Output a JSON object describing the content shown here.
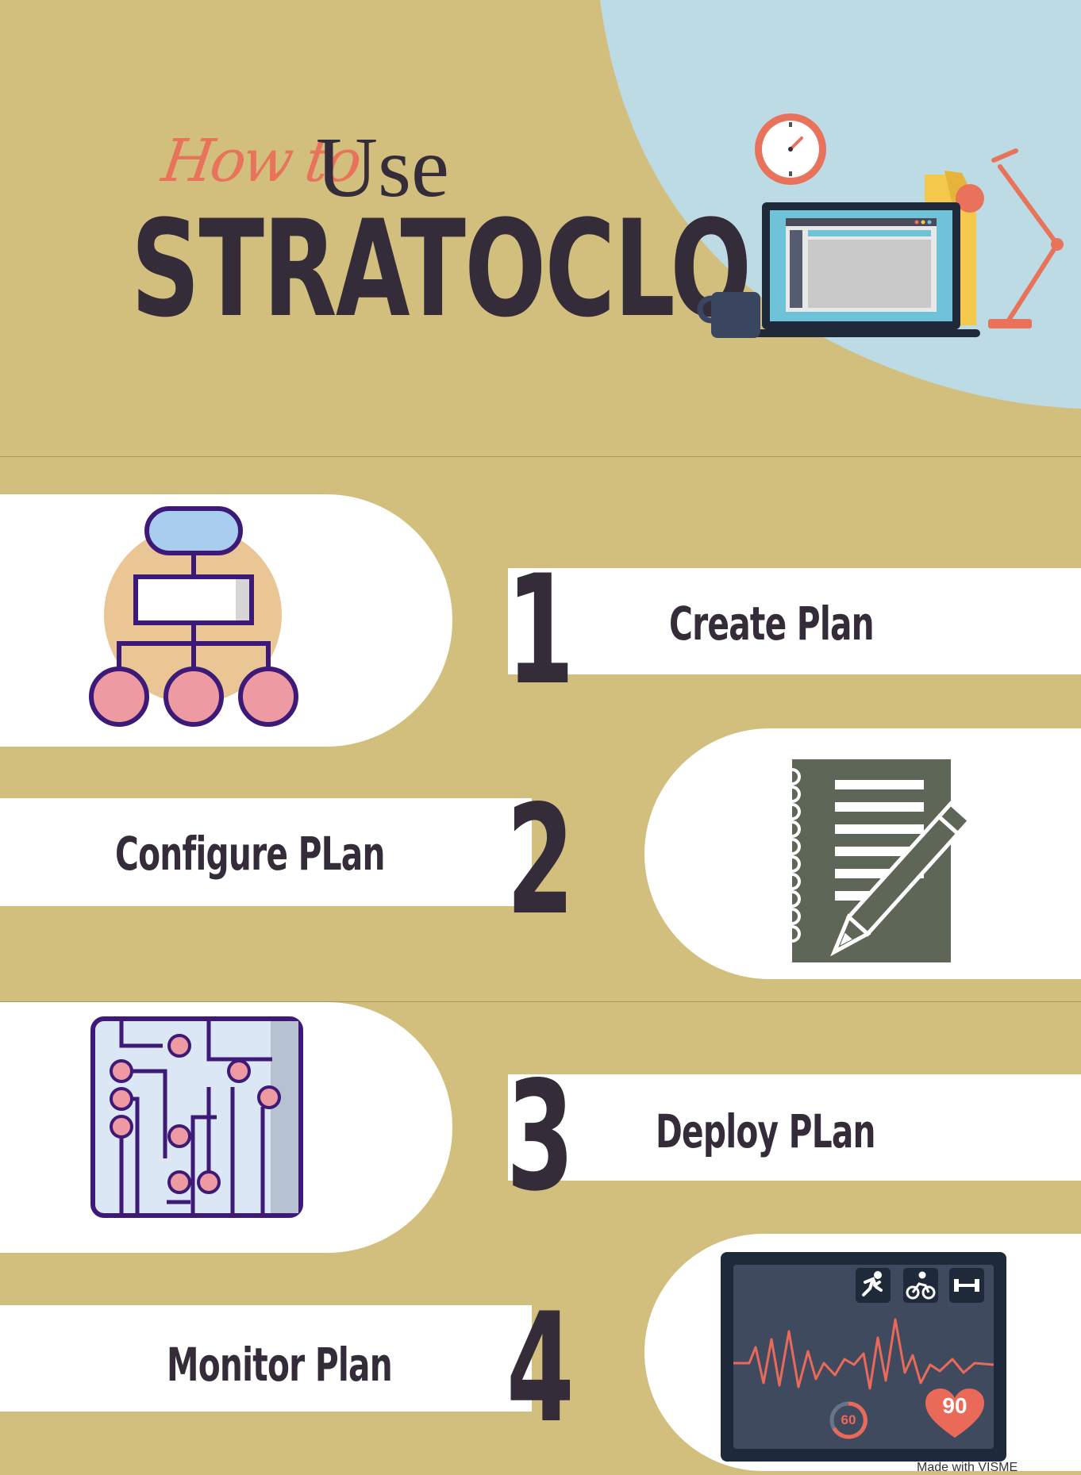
{
  "header": {
    "title_script": "How to",
    "title_use": "Use",
    "title_main": "STRATOCLO"
  },
  "steps": [
    {
      "number": "1",
      "label": "Create Plan",
      "icon": "flowchart-icon"
    },
    {
      "number": "2",
      "label": "Configure PLan",
      "icon": "notebook-pencil-icon"
    },
    {
      "number": "3",
      "label": "Deploy PLan",
      "icon": "circuit-board-icon"
    },
    {
      "number": "4",
      "label": "Monitor Plan",
      "icon": "fitness-monitor-icon"
    }
  ],
  "monitor": {
    "speed_value": "60",
    "heart_value": "90"
  },
  "footer": {
    "credit": "Made with VISME"
  },
  "colors": {
    "background": "#d3bf7d",
    "dark": "#352c3a",
    "accent": "#e8735a",
    "sky": "#bcdbe4"
  }
}
